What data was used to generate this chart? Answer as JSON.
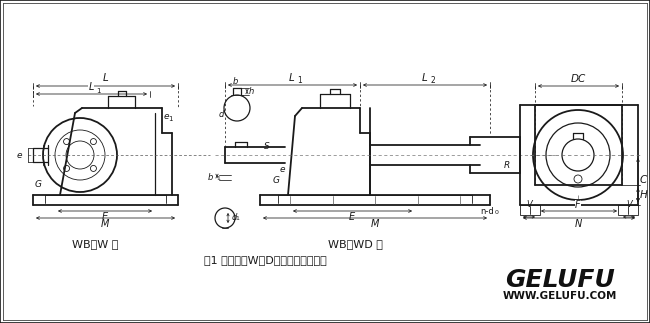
{
  "bg_color": "#ffffff",
  "line_color": "#1a1a1a",
  "dim_color": "#1a1a1a",
  "title": "图1 单级卧式W（D）型减速器的外形",
  "label_wb_w": "WB－W 型",
  "label_wb_wd": "WB－WD 型",
  "brand": "GELUFU",
  "brand_url": "WWW.GELUFU.COM",
  "fig_width": 6.5,
  "fig_height": 3.23,
  "dpi": 100,
  "font_chinese": "SimSun"
}
